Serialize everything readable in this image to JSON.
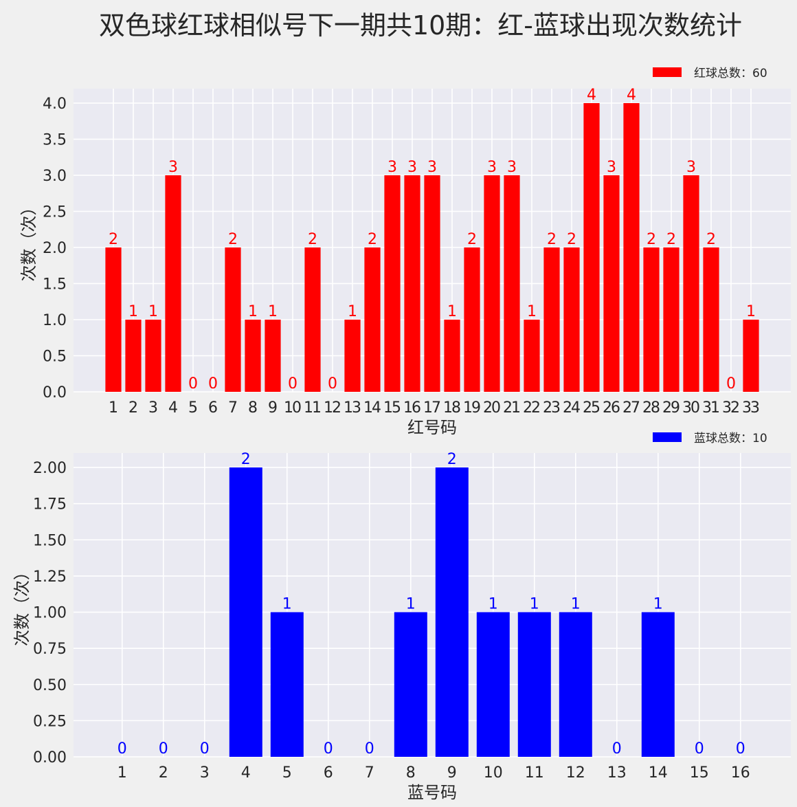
{
  "title": "双色球红球相似号下一期共10期：红-蓝球出现次数统计",
  "chart_data": [
    {
      "type": "bar",
      "id": "red",
      "title": "",
      "xlabel": "红号码",
      "ylabel": "次数（次）",
      "color": "#ff0000",
      "legend": "红球总数：60",
      "legend_position": "upper right (above axes)",
      "grid": true,
      "xlim": [
        -1,
        35
      ],
      "ylim": [
        0,
        4.2
      ],
      "yticks": [
        "0.0",
        "0.5",
        "1.0",
        "1.5",
        "2.0",
        "2.5",
        "3.0",
        "3.5",
        "4.0"
      ],
      "ytick_values": [
        0,
        0.5,
        1.0,
        1.5,
        2.0,
        2.5,
        3.0,
        3.5,
        4.0
      ],
      "categories": [
        "1",
        "2",
        "3",
        "4",
        "5",
        "6",
        "7",
        "8",
        "9",
        "10",
        "11",
        "12",
        "13",
        "14",
        "15",
        "16",
        "17",
        "18",
        "19",
        "20",
        "21",
        "22",
        "23",
        "24",
        "25",
        "26",
        "27",
        "28",
        "29",
        "30",
        "31",
        "32",
        "33"
      ],
      "values": [
        2,
        1,
        1,
        3,
        0,
        0,
        2,
        1,
        1,
        0,
        2,
        0,
        1,
        2,
        3,
        3,
        3,
        1,
        2,
        3,
        3,
        1,
        2,
        2,
        4,
        3,
        4,
        2,
        2,
        3,
        2,
        0,
        1
      ]
    },
    {
      "type": "bar",
      "id": "blue",
      "title": "",
      "xlabel": "蓝号码",
      "ylabel": "次数（次）",
      "color": "#0000ff",
      "legend": "蓝球总数：10",
      "legend_position": "upper right (above axes)",
      "grid": true,
      "xlim": [
        -0.18,
        17.22
      ],
      "ylim": [
        0,
        2.1
      ],
      "yticks": [
        "0.00",
        "0.25",
        "0.50",
        "0.75",
        "1.00",
        "1.25",
        "1.50",
        "1.75",
        "2.00"
      ],
      "ytick_values": [
        0,
        0.25,
        0.5,
        0.75,
        1.0,
        1.25,
        1.5,
        1.75,
        2.0
      ],
      "categories": [
        "1",
        "2",
        "3",
        "4",
        "5",
        "6",
        "7",
        "8",
        "9",
        "10",
        "11",
        "12",
        "13",
        "14",
        "15",
        "16"
      ],
      "values": [
        0,
        0,
        0,
        2,
        1,
        0,
        0,
        1,
        2,
        1,
        1,
        1,
        0,
        1,
        0,
        0
      ]
    }
  ],
  "style": {
    "figure_bg": "#f0f0f0",
    "axes_bg": "#eaeaf2",
    "grid_color": "#ffffff",
    "text_color": "#262626"
  }
}
